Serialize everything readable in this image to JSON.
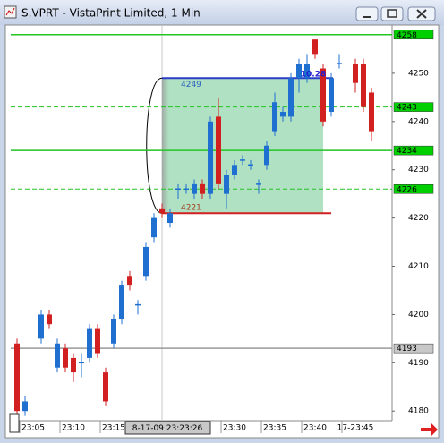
{
  "window_title": "S.VPRT - VistaPrint Limited, 1 Min",
  "chart_data": {
    "type": "candlestick",
    "categories": [
      null,
      null,
      "23:05",
      null,
      null,
      null,
      null,
      "23:10",
      null,
      null,
      null,
      null,
      "23:15",
      null,
      null,
      null,
      null,
      null,
      null,
      null,
      null,
      null,
      null,
      null,
      null,
      null,
      null,
      "23:30",
      null,
      null,
      null,
      null,
      "23:35",
      null,
      null,
      null,
      null,
      "23:40",
      null,
      null,
      null,
      null,
      "17-23:45",
      null,
      null
    ],
    "open": [
      4194,
      4180,
      null,
      4195,
      4200,
      4189,
      4193,
      4191,
      4190,
      4191,
      4197,
      4188,
      4194,
      4199,
      4208,
      4202,
      4208,
      4216,
      4222,
      4219,
      4226,
      4226,
      4225,
      4227,
      4225,
      4241,
      4225,
      4229,
      4232,
      4231,
      4227,
      4231,
      4238,
      4241,
      4241,
      4249,
      4249,
      4257,
      4251,
      4242,
      4252,
      null,
      4252,
      4252,
      4246
    ],
    "high": [
      4195,
      4183,
      null,
      4201,
      4201,
      4195,
      4194,
      4192,
      4192,
      4198,
      4198,
      4189,
      4200,
      4207,
      4209,
      4203,
      4215,
      4221,
      4223,
      4222,
      4227,
      4227,
      4228,
      4228,
      4241,
      4245,
      4230,
      4232,
      4233,
      4232,
      4228,
      4236,
      4246,
      4243,
      4250,
      4253,
      4254,
      4257,
      4252,
      4250,
      4254,
      null,
      4253,
      4253,
      4247
    ],
    "low": [
      4179,
      4179,
      null,
      4194,
      4197,
      4188,
      4188,
      4186,
      4187,
      4190,
      4191,
      4181,
      4193,
      4198,
      4205,
      4200,
      4207,
      4215,
      4220,
      4218,
      4224,
      4225,
      4224,
      4224,
      4224,
      4226,
      4222,
      4228,
      4231,
      4230,
      4225,
      4230,
      4237,
      4240,
      4240,
      4246,
      4248,
      4253,
      4239,
      4241,
      4251,
      null,
      4246,
      4242,
      4236
    ],
    "close": [
      4180,
      4182,
      null,
      4200,
      4198,
      4194,
      4189,
      4188,
      4190,
      4197,
      4192,
      4182,
      4199,
      4206,
      4206,
      4202,
      4214,
      4220,
      4221,
      4221,
      4226,
      4226,
      4227,
      4225,
      4240,
      4227,
      4229,
      4231,
      4232,
      4231,
      4227,
      4235,
      4244,
      4242,
      4249,
      4252,
      4252,
      4254,
      4240,
      4249,
      4252,
      null,
      4248,
      4243,
      4238
    ],
    "up_color": "#1f6fd1",
    "down_color": "#d21f1f",
    "ylim": [
      4178,
      4260
    ],
    "yticks": [
      4180,
      4190,
      4200,
      4210,
      4220,
      4230,
      4240,
      4250
    ],
    "levels": [
      {
        "value": 4258,
        "style": "solid",
        "color": "#22c522"
      },
      {
        "value": 4243,
        "style": "dashed",
        "color": "#22c522"
      },
      {
        "value": 4234,
        "style": "solid",
        "color": "#22c522"
      },
      {
        "value": 4226,
        "style": "dashed",
        "color": "#22c522"
      },
      {
        "value": 4193,
        "style": "solid",
        "color": "#9a9a9a"
      }
    ],
    "range_box": {
      "top": 4249,
      "bottom": 4221,
      "ratio_label": "10.28"
    },
    "cursor_label": "8-17-09 23:23:26"
  }
}
